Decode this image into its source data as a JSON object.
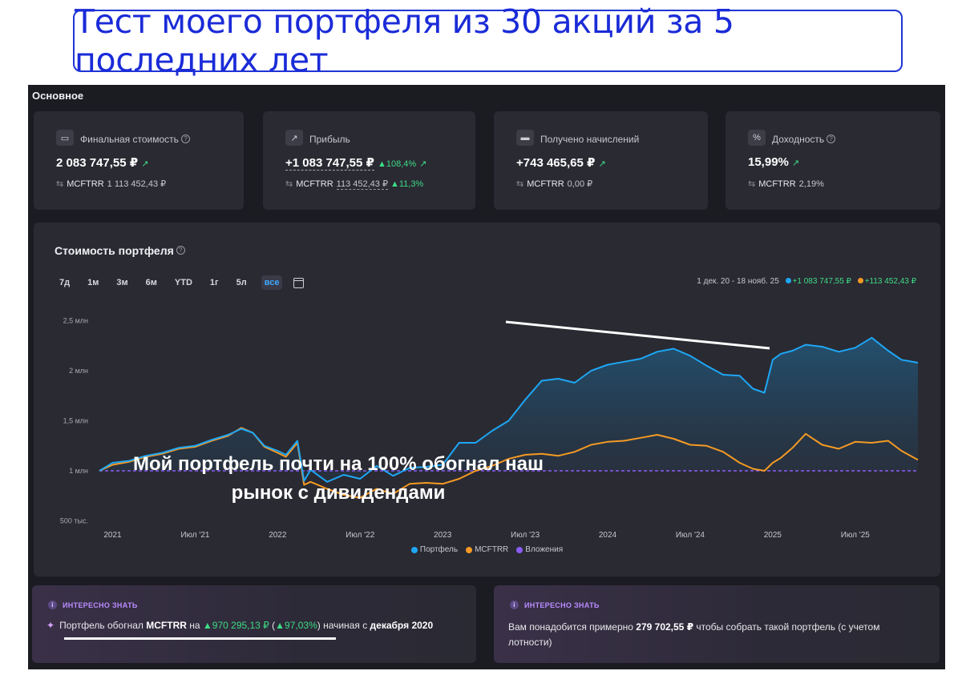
{
  "headline": "Тест моего портфеля из 30 акций за 5 последних лет",
  "section_title": "Основное",
  "stats": [
    {
      "icon": "wallet-icon",
      "label": "Финальная стоимость",
      "value": "2 083 747,55 ₽",
      "value_pct": "",
      "bench_name": "MCFTRR",
      "bench_value": "1 113 452,43 ₽",
      "bench_pct": ""
    },
    {
      "icon": "chart-up-icon",
      "label": "Прибыль",
      "value": "+1 083 747,55 ₽",
      "value_pct": "▲108,4%",
      "bench_name": "MCFTRR",
      "bench_value": "113 452,43 ₽",
      "bench_pct": "▲11,3%"
    },
    {
      "icon": "card-icon",
      "label": "Получено начислений",
      "value": "+743 465,65 ₽",
      "value_pct": "",
      "bench_name": "MCFTRR",
      "bench_value": "0,00 ₽",
      "bench_pct": ""
    },
    {
      "icon": "percent-icon",
      "label": "Доходность",
      "value": "15,99%",
      "value_pct": "",
      "bench_name": "MCFTRR",
      "bench_value": "2,19%",
      "bench_pct": ""
    }
  ],
  "chart_card": {
    "title": "Стоимость портфеля",
    "ranges": [
      "7д",
      "1м",
      "3м",
      "6м",
      "YTD",
      "1г",
      "5л",
      "все"
    ],
    "active_range": "все",
    "period": "1 дек. 20 - 18 нояб. 25",
    "portfolio_gain": "+1 083 747,55 ₽",
    "bench_gain": "+113 452,43 ₽",
    "callout": "Мой портфель почти на 100% обогнал наш рынок с дивидендами"
  },
  "chart_data": {
    "type": "line",
    "y_ticks": [
      "2,5 млн",
      "2 млн",
      "1,5 млн",
      "1 млн",
      "500 тыс."
    ],
    "y_tick_values": [
      2500000,
      2000000,
      1500000,
      1000000,
      500000
    ],
    "x_ticks": [
      "2021",
      "Июл '21",
      "2022",
      "Июл '22",
      "2023",
      "Июл '23",
      "2024",
      "Июл '24",
      "2025",
      "Июл '25"
    ],
    "x_tick_values": [
      2021.0,
      2021.5,
      2022.0,
      2022.5,
      2023.0,
      2023.5,
      2024.0,
      2024.5,
      2025.0,
      2025.5
    ],
    "xlim": [
      2020.92,
      2025.88
    ],
    "ylim": [
      480000,
      2600000
    ],
    "series": [
      {
        "name": "Портфель",
        "color": "#1ea7f5",
        "x": [
          2020.92,
          2021.0,
          2021.1,
          2021.2,
          2021.3,
          2021.4,
          2021.5,
          2021.6,
          2021.7,
          2021.78,
          2021.85,
          2021.92,
          2022.0,
          2022.05,
          2022.12,
          2022.16,
          2022.2,
          2022.3,
          2022.4,
          2022.5,
          2022.6,
          2022.7,
          2022.8,
          2022.9,
          2023.0,
          2023.1,
          2023.2,
          2023.3,
          2023.4,
          2023.5,
          2023.6,
          2023.7,
          2023.8,
          2023.9,
          2024.0,
          2024.1,
          2024.2,
          2024.3,
          2024.4,
          2024.5,
          2024.6,
          2024.7,
          2024.8,
          2024.88,
          2024.95,
          2025.0,
          2025.05,
          2025.12,
          2025.2,
          2025.3,
          2025.4,
          2025.5,
          2025.6,
          2025.7,
          2025.78,
          2025.88
        ],
        "values": [
          1000000,
          1080000,
          1100000,
          1150000,
          1180000,
          1230000,
          1250000,
          1310000,
          1360000,
          1420000,
          1380000,
          1250000,
          1200000,
          1160000,
          1300000,
          900000,
          1010000,
          890000,
          960000,
          920000,
          1050000,
          950000,
          1030000,
          1040000,
          1060000,
          1280000,
          1280000,
          1400000,
          1500000,
          1710000,
          1900000,
          1920000,
          1880000,
          2000000,
          2060000,
          2090000,
          2120000,
          2190000,
          2220000,
          2150000,
          2050000,
          1960000,
          1950000,
          1820000,
          1780000,
          2110000,
          2170000,
          2200000,
          2260000,
          2240000,
          2190000,
          2230000,
          2330000,
          2200000,
          2110000,
          2080000
        ]
      },
      {
        "name": "MCFTRR",
        "color": "#f59a23",
        "x": [
          2020.92,
          2021.0,
          2021.1,
          2021.2,
          2021.3,
          2021.4,
          2021.5,
          2021.6,
          2021.7,
          2021.78,
          2021.85,
          2021.92,
          2022.0,
          2022.05,
          2022.12,
          2022.16,
          2022.2,
          2022.3,
          2022.4,
          2022.5,
          2022.6,
          2022.7,
          2022.8,
          2022.9,
          2023.0,
          2023.1,
          2023.2,
          2023.3,
          2023.4,
          2023.5,
          2023.6,
          2023.7,
          2023.8,
          2023.9,
          2024.0,
          2024.1,
          2024.2,
          2024.3,
          2024.4,
          2024.5,
          2024.6,
          2024.7,
          2024.8,
          2024.88,
          2024.95,
          2025.0,
          2025.05,
          2025.12,
          2025.2,
          2025.3,
          2025.4,
          2025.5,
          2025.6,
          2025.7,
          2025.78,
          2025.88
        ],
        "values": [
          1000000,
          1060000,
          1090000,
          1140000,
          1170000,
          1220000,
          1240000,
          1300000,
          1350000,
          1430000,
          1380000,
          1240000,
          1180000,
          1140000,
          1280000,
          860000,
          890000,
          820000,
          760000,
          730000,
          820000,
          770000,
          870000,
          880000,
          870000,
          920000,
          1000000,
          1050000,
          1120000,
          1160000,
          1170000,
          1150000,
          1190000,
          1260000,
          1290000,
          1300000,
          1330000,
          1360000,
          1320000,
          1260000,
          1250000,
          1190000,
          1080000,
          1020000,
          1000000,
          1080000,
          1130000,
          1230000,
          1370000,
          1260000,
          1220000,
          1290000,
          1280000,
          1300000,
          1200000,
          1110000
        ]
      },
      {
        "name": "Вложения",
        "color": "#8b5cf6",
        "x": [
          2020.92,
          2025.88
        ],
        "values": [
          1000000,
          1000000
        ]
      }
    ]
  },
  "legend": [
    {
      "name": "Портфель",
      "color": "#1ea7f5"
    },
    {
      "name": "MCFTRR",
      "color": "#f59a23"
    },
    {
      "name": "Вложения",
      "color": "#8b5cf6"
    }
  ],
  "info_left": {
    "tag": "ИНТЕРЕСНО ЗНАТЬ",
    "icon": "party-icon",
    "t1": "Портфель обогнал",
    "t2": "MCFTRR",
    "t3": "на",
    "t4": "▲970 295,13 ₽",
    "t5": "(",
    "t6": "▲97,03%",
    "t7": ") начиная с",
    "t8": "декабря 2020"
  },
  "info_right": {
    "tag": "ИНТЕРЕСНО ЗНАТЬ",
    "t1": "Вам понадобится примерно",
    "t2": "279 702,55 ₽",
    "t3": "чтобы собрать такой портфель (с учетом лотности)"
  }
}
